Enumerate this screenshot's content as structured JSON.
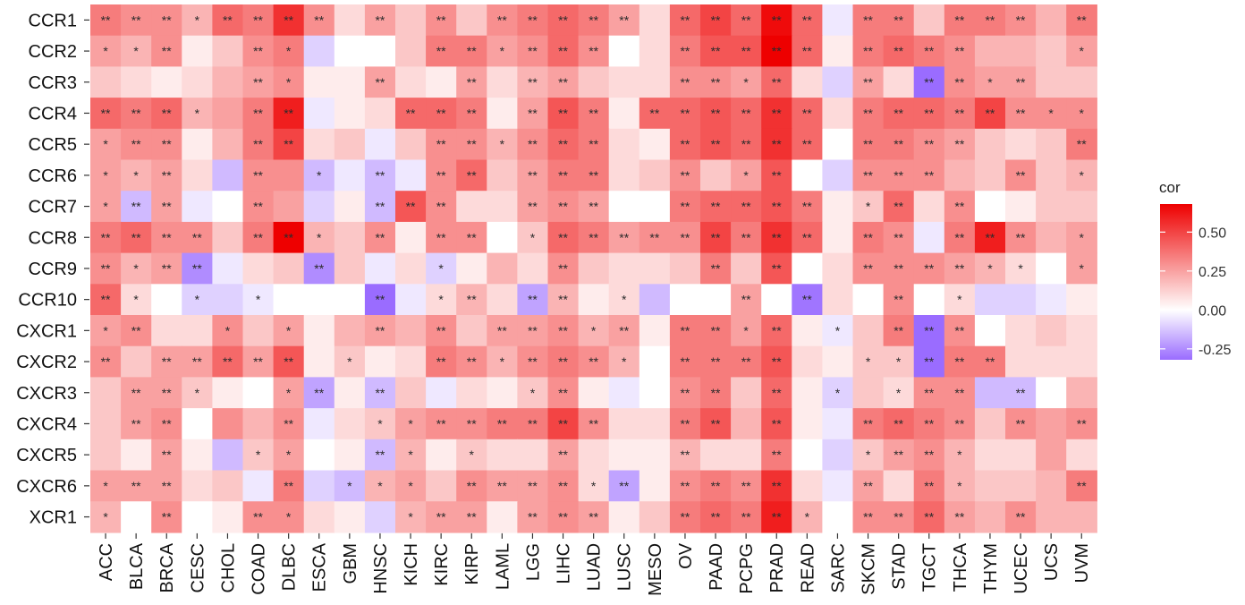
{
  "chart_data": {
    "type": "heatmap",
    "title": "",
    "xlabel": "",
    "ylabel": "",
    "rows": [
      "CCR1",
      "CCR2",
      "CCR3",
      "CCR4",
      "CCR5",
      "CCR6",
      "CCR7",
      "CCR8",
      "CCR9",
      "CCR10",
      "CXCR1",
      "CXCR2",
      "CXCR3",
      "CXCR4",
      "CXCR5",
      "CXCR6",
      "XCR1"
    ],
    "columns": [
      "ACC",
      "BLCA",
      "BRCA",
      "CESC",
      "CHOL",
      "COAD",
      "DLBC",
      "ESCA",
      "GBM",
      "HNSC",
      "KICH",
      "KIRC",
      "KIRP",
      "LAML",
      "LGG",
      "LIHC",
      "LUAD",
      "LUSC",
      "MESO",
      "OV",
      "PAAD",
      "PCPG",
      "PRAD",
      "READ",
      "SARC",
      "SKCM",
      "STAD",
      "TGCT",
      "THCA",
      "THYM",
      "UCEC",
      "UCS",
      "UVM"
    ],
    "values": [
      [
        0.35,
        0.3,
        0.3,
        0.2,
        0.4,
        0.35,
        0.55,
        0.3,
        0.1,
        0.25,
        0.15,
        0.3,
        0.15,
        0.3,
        0.35,
        0.4,
        0.35,
        0.25,
        0.1,
        0.4,
        0.5,
        0.4,
        0.65,
        0.4,
        -0.05,
        0.35,
        0.35,
        0.15,
        0.35,
        0.35,
        0.3,
        0.2,
        0.35
      ],
      [
        0.25,
        0.2,
        0.3,
        0.05,
        0.15,
        0.3,
        0.35,
        -0.1,
        0.0,
        0.0,
        0.15,
        0.35,
        0.35,
        0.25,
        0.3,
        0.4,
        0.3,
        0.0,
        0.1,
        0.35,
        0.45,
        0.45,
        0.7,
        0.4,
        0.05,
        0.35,
        0.4,
        0.35,
        0.3,
        0.2,
        0.2,
        0.15,
        0.25
      ],
      [
        0.15,
        0.1,
        0.05,
        0.1,
        0.2,
        0.25,
        0.3,
        0.05,
        0.05,
        0.25,
        0.1,
        0.05,
        0.25,
        0.1,
        0.2,
        0.25,
        0.15,
        0.1,
        0.1,
        0.3,
        0.3,
        0.25,
        0.4,
        0.1,
        -0.1,
        0.25,
        0.1,
        -0.35,
        0.3,
        0.25,
        0.25,
        0.15,
        0.15
      ],
      [
        0.4,
        0.35,
        0.4,
        0.2,
        0.25,
        0.35,
        0.6,
        -0.05,
        0.05,
        0.1,
        0.4,
        0.4,
        0.35,
        0.05,
        0.25,
        0.45,
        0.35,
        0.05,
        0.4,
        0.4,
        0.45,
        0.4,
        0.55,
        0.4,
        0.1,
        0.35,
        0.4,
        0.4,
        0.35,
        0.5,
        0.3,
        0.3,
        0.3
      ],
      [
        0.25,
        0.3,
        0.3,
        0.05,
        0.2,
        0.35,
        0.5,
        0.1,
        0.15,
        -0.05,
        0.15,
        0.3,
        0.3,
        0.2,
        0.3,
        0.4,
        0.35,
        0.1,
        0.05,
        0.4,
        0.45,
        0.4,
        0.55,
        0.4,
        0.0,
        0.35,
        0.35,
        0.3,
        0.25,
        0.15,
        0.1,
        0.15,
        0.35
      ],
      [
        0.25,
        0.2,
        0.25,
        0.1,
        -0.15,
        0.3,
        0.3,
        -0.15,
        -0.05,
        -0.15,
        -0.05,
        0.3,
        0.4,
        0.15,
        0.25,
        0.35,
        0.35,
        0.1,
        0.15,
        0.3,
        0.15,
        0.25,
        0.45,
        0.0,
        -0.1,
        0.3,
        0.3,
        0.3,
        0.2,
        0.15,
        0.3,
        0.15,
        0.2
      ],
      [
        0.25,
        -0.15,
        0.25,
        -0.05,
        0.0,
        0.3,
        0.25,
        -0.1,
        0.05,
        -0.15,
        0.45,
        0.3,
        0.1,
        0.1,
        0.25,
        0.3,
        0.25,
        0.0,
        0.0,
        0.35,
        0.4,
        0.4,
        0.45,
        0.35,
        0.05,
        0.15,
        0.4,
        0.1,
        0.3,
        0.0,
        0.05,
        0.15,
        0.15
      ],
      [
        0.35,
        0.4,
        0.3,
        0.3,
        0.15,
        0.35,
        0.7,
        0.2,
        0.15,
        0.3,
        0.05,
        0.3,
        0.3,
        0.0,
        0.15,
        0.4,
        0.35,
        0.25,
        0.3,
        0.3,
        0.5,
        0.35,
        0.55,
        0.4,
        0.05,
        0.35,
        0.3,
        -0.05,
        0.35,
        0.6,
        0.3,
        0.2,
        0.25
      ],
      [
        0.3,
        0.2,
        0.25,
        -0.25,
        -0.05,
        0.1,
        0.15,
        -0.25,
        0.15,
        -0.05,
        0.1,
        -0.1,
        0.05,
        0.2,
        0.1,
        0.3,
        0.15,
        0.1,
        0.1,
        0.15,
        0.35,
        0.15,
        0.45,
        0.0,
        0.1,
        0.3,
        0.3,
        0.3,
        0.25,
        0.2,
        0.1,
        0.0,
        0.25
      ],
      [
        0.4,
        0.1,
        0.0,
        -0.1,
        -0.1,
        -0.05,
        0.0,
        0.0,
        0.0,
        -0.35,
        -0.05,
        0.1,
        0.2,
        0.1,
        -0.2,
        0.2,
        0.05,
        0.1,
        -0.15,
        0.0,
        0.0,
        0.25,
        0.0,
        -0.3,
        0.1,
        0.0,
        0.3,
        0.0,
        0.1,
        -0.1,
        -0.1,
        -0.05,
        0.05
      ],
      [
        0.25,
        0.3,
        0.1,
        0.1,
        0.3,
        0.15,
        0.25,
        0.05,
        0.2,
        0.25,
        0.2,
        0.3,
        0.15,
        0.25,
        0.25,
        0.3,
        0.2,
        0.25,
        0.05,
        0.35,
        0.35,
        0.25,
        0.4,
        0.05,
        -0.05,
        0.15,
        0.35,
        -0.35,
        0.3,
        0.0,
        0.1,
        0.15,
        0.1
      ],
      [
        0.3,
        0.15,
        0.25,
        0.25,
        0.4,
        0.25,
        0.45,
        0.05,
        0.15,
        0.05,
        0.1,
        0.35,
        0.3,
        0.2,
        0.3,
        0.35,
        0.3,
        0.2,
        0.0,
        0.35,
        0.35,
        0.35,
        0.45,
        0.1,
        0.05,
        0.15,
        0.15,
        -0.35,
        0.35,
        0.35,
        0.1,
        0.1,
        0.1
      ],
      [
        0.15,
        0.25,
        0.25,
        0.15,
        0.05,
        0.0,
        0.25,
        -0.2,
        0.05,
        -0.15,
        0.15,
        -0.05,
        0.1,
        0.05,
        0.15,
        0.3,
        0.05,
        -0.05,
        0.0,
        0.3,
        0.35,
        0.15,
        0.4,
        0.05,
        -0.1,
        0.15,
        0.1,
        0.3,
        0.3,
        -0.15,
        -0.15,
        0.0,
        0.2
      ],
      [
        0.15,
        0.25,
        0.3,
        0.0,
        0.3,
        0.2,
        0.3,
        -0.05,
        0.1,
        0.15,
        0.25,
        0.3,
        0.3,
        0.35,
        0.35,
        0.5,
        0.3,
        0.1,
        0.1,
        0.35,
        0.45,
        0.2,
        0.45,
        0.05,
        -0.05,
        0.35,
        0.4,
        0.35,
        0.3,
        0.15,
        0.3,
        0.25,
        0.3
      ],
      [
        0.15,
        0.05,
        0.25,
        0.05,
        -0.15,
        0.15,
        0.25,
        0.0,
        0.05,
        -0.15,
        0.2,
        0.05,
        0.15,
        0.1,
        0.1,
        0.25,
        0.1,
        0.05,
        0.05,
        0.2,
        0.1,
        0.1,
        0.35,
        0.0,
        -0.1,
        0.15,
        0.25,
        0.3,
        0.2,
        0.1,
        0.1,
        0.25,
        0.1
      ],
      [
        0.25,
        0.25,
        0.25,
        0.1,
        0.15,
        -0.05,
        0.35,
        -0.1,
        -0.15,
        0.2,
        0.25,
        0.15,
        0.3,
        0.25,
        0.25,
        0.3,
        0.1,
        -0.2,
        0.05,
        0.3,
        0.35,
        0.3,
        0.55,
        0.1,
        -0.05,
        0.25,
        0.1,
        0.35,
        0.2,
        0.15,
        0.15,
        0.2,
        0.35
      ],
      [
        0.2,
        0.0,
        0.3,
        0.0,
        0.05,
        0.3,
        0.3,
        0.1,
        0.05,
        -0.1,
        0.2,
        0.25,
        0.25,
        0.05,
        0.25,
        0.3,
        0.25,
        0.05,
        0.15,
        0.35,
        0.4,
        0.35,
        0.6,
        0.2,
        0.0,
        0.3,
        0.3,
        0.4,
        0.25,
        0.2,
        0.3,
        0.2,
        0.2
      ]
    ],
    "significance": [
      [
        "**",
        "**",
        "**",
        "*",
        "**",
        "**",
        "**",
        "**",
        "",
        "**",
        "",
        "**",
        "",
        "**",
        "**",
        "**",
        "**",
        "**",
        "",
        "**",
        "**",
        "**",
        "**",
        "**",
        "",
        "**",
        "**",
        "",
        "**",
        "**",
        "**",
        "",
        "**"
      ],
      [
        "*",
        "*",
        "**",
        "",
        "",
        "**",
        "*",
        "",
        "",
        "",
        "",
        "**",
        "**",
        "*",
        "**",
        "**",
        "**",
        "",
        "",
        "**",
        "**",
        "**",
        "**",
        "**",
        "",
        "**",
        "**",
        "**",
        "**",
        "",
        "",
        "",
        "*"
      ],
      [
        "",
        "",
        "",
        "",
        "",
        "**",
        "*",
        "",
        "",
        "**",
        "",
        "",
        "**",
        "",
        "**",
        "**",
        "",
        "",
        "",
        "**",
        "**",
        "*",
        "**",
        "",
        "",
        "**",
        "",
        "**",
        "**",
        "*",
        "**",
        "",
        ""
      ],
      [
        "**",
        "**",
        "**",
        "*",
        "",
        "**",
        "**",
        "",
        "",
        "",
        "**",
        "**",
        "**",
        "",
        "**",
        "**",
        "**",
        "",
        "**",
        "**",
        "**",
        "**",
        "**",
        "**",
        "",
        "**",
        "**",
        "**",
        "**",
        "**",
        "**",
        "*",
        "*"
      ],
      [
        "*",
        "**",
        "**",
        "",
        "",
        "**",
        "**",
        "",
        "",
        "",
        "",
        "**",
        "**",
        "*",
        "**",
        "**",
        "**",
        "",
        "",
        "**",
        "**",
        "**",
        "**",
        "**",
        "",
        "**",
        "**",
        "**",
        "**",
        "",
        "",
        "",
        "**"
      ],
      [
        "*",
        "*",
        "**",
        "",
        "",
        "**",
        "",
        "*",
        "",
        "**",
        "",
        "**",
        "**",
        "",
        "**",
        "**",
        "**",
        "",
        "",
        "**",
        "",
        "*",
        "**",
        "",
        "",
        "**",
        "**",
        "**",
        "",
        "",
        "**",
        "",
        "*"
      ],
      [
        "*",
        "**",
        "**",
        "",
        "",
        "**",
        "",
        "",
        "",
        "**",
        "**",
        "**",
        "",
        "",
        "**",
        "**",
        "**",
        "",
        "",
        "**",
        "**",
        "**",
        "**",
        "**",
        "",
        "*",
        "**",
        "",
        "**",
        "",
        "",
        "",
        ""
      ],
      [
        "**",
        "**",
        "**",
        "**",
        "",
        "**",
        "**",
        "*",
        "",
        "**",
        "",
        "**",
        "**",
        "",
        "*",
        "**",
        "**",
        "**",
        "**",
        "**",
        "**",
        "**",
        "**",
        "**",
        "",
        "**",
        "**",
        "",
        "**",
        "**",
        "**",
        "",
        "*"
      ],
      [
        "**",
        "*",
        "**",
        "**",
        "",
        "",
        "",
        "**",
        "",
        "",
        "",
        "*",
        "",
        "",
        "",
        "**",
        "",
        "",
        "",
        "",
        "**",
        "",
        "**",
        "",
        "",
        "**",
        "**",
        "**",
        "**",
        "*",
        "*",
        "",
        "*"
      ],
      [
        "**",
        "*",
        "",
        "*",
        "",
        "*",
        "",
        "",
        "",
        "**",
        "",
        "*",
        "**",
        "",
        "**",
        "**",
        "",
        "*",
        "",
        "",
        "",
        "**",
        "",
        "**",
        "",
        "",
        "**",
        "",
        "*",
        "",
        "",
        "",
        ""
      ],
      [
        "*",
        "**",
        "",
        "",
        "*",
        "",
        "*",
        "",
        "",
        "**",
        "",
        "**",
        "",
        "**",
        "**",
        "**",
        "*",
        "**",
        "",
        "**",
        "**",
        "*",
        "**",
        "",
        "*",
        "",
        "**",
        "**",
        "**",
        "",
        "",
        "",
        ""
      ],
      [
        "**",
        "",
        "**",
        "**",
        "**",
        "**",
        "**",
        "",
        "*",
        "",
        "",
        "**",
        "**",
        "*",
        "**",
        "**",
        "**",
        "*",
        "",
        "**",
        "**",
        "**",
        "**",
        "",
        "",
        "*",
        "*",
        "**",
        "**",
        "**",
        "",
        "",
        ""
      ],
      [
        "",
        "**",
        "**",
        "*",
        "",
        "",
        "*",
        "**",
        "",
        "**",
        "",
        "",
        "",
        "",
        "*",
        "**",
        "",
        "",
        "",
        "**",
        "**",
        "",
        "**",
        "",
        "*",
        "",
        "*",
        "**",
        "**",
        "",
        "**",
        "",
        ""
      ],
      [
        "",
        "**",
        "**",
        "",
        "",
        "",
        "**",
        "",
        "",
        "*",
        "*",
        "**",
        "**",
        "**",
        "**",
        "**",
        "**",
        "",
        "",
        "**",
        "**",
        "",
        "**",
        "",
        "",
        "**",
        "**",
        "**",
        "**",
        "",
        "**",
        "",
        "**"
      ],
      [
        "",
        "",
        "**",
        "",
        "",
        "*",
        "*",
        "",
        "",
        "**",
        "*",
        "",
        "*",
        "",
        "",
        "**",
        "",
        "",
        "",
        "**",
        "",
        "",
        "**",
        "",
        "",
        "*",
        "**",
        "**",
        "*",
        "",
        "",
        "",
        ""
      ],
      [
        "*",
        "**",
        "**",
        "",
        "",
        "",
        "**",
        "",
        "*",
        "*",
        "*",
        "",
        "**",
        "**",
        "**",
        "**",
        "*",
        "**",
        "",
        "**",
        "**",
        "**",
        "**",
        "",
        "",
        "**",
        "",
        "**",
        "*",
        "",
        "",
        "",
        "**"
      ],
      [
        "*",
        "",
        "**",
        "",
        "",
        "**",
        "*",
        "",
        "",
        "",
        "*",
        "**",
        "**",
        "",
        "**",
        "**",
        "**",
        "",
        "",
        "**",
        "**",
        "**",
        "**",
        "*",
        "",
        "**",
        "**",
        "**",
        "**",
        "",
        "**",
        "",
        ""
      ]
    ],
    "legend": {
      "title": "cor",
      "ticks": [
        "0.50",
        "0.25",
        "0.00",
        "-0.25"
      ],
      "tick_values": [
        0.5,
        0.25,
        0.0,
        -0.25
      ],
      "range": [
        -0.32,
        0.68
      ],
      "position": "right"
    },
    "colors": {
      "high": "#ee0000",
      "mid": "#ffffff",
      "low": "#9a6cff",
      "text": "#2b2b2b",
      "axis_text": "#111111"
    }
  }
}
